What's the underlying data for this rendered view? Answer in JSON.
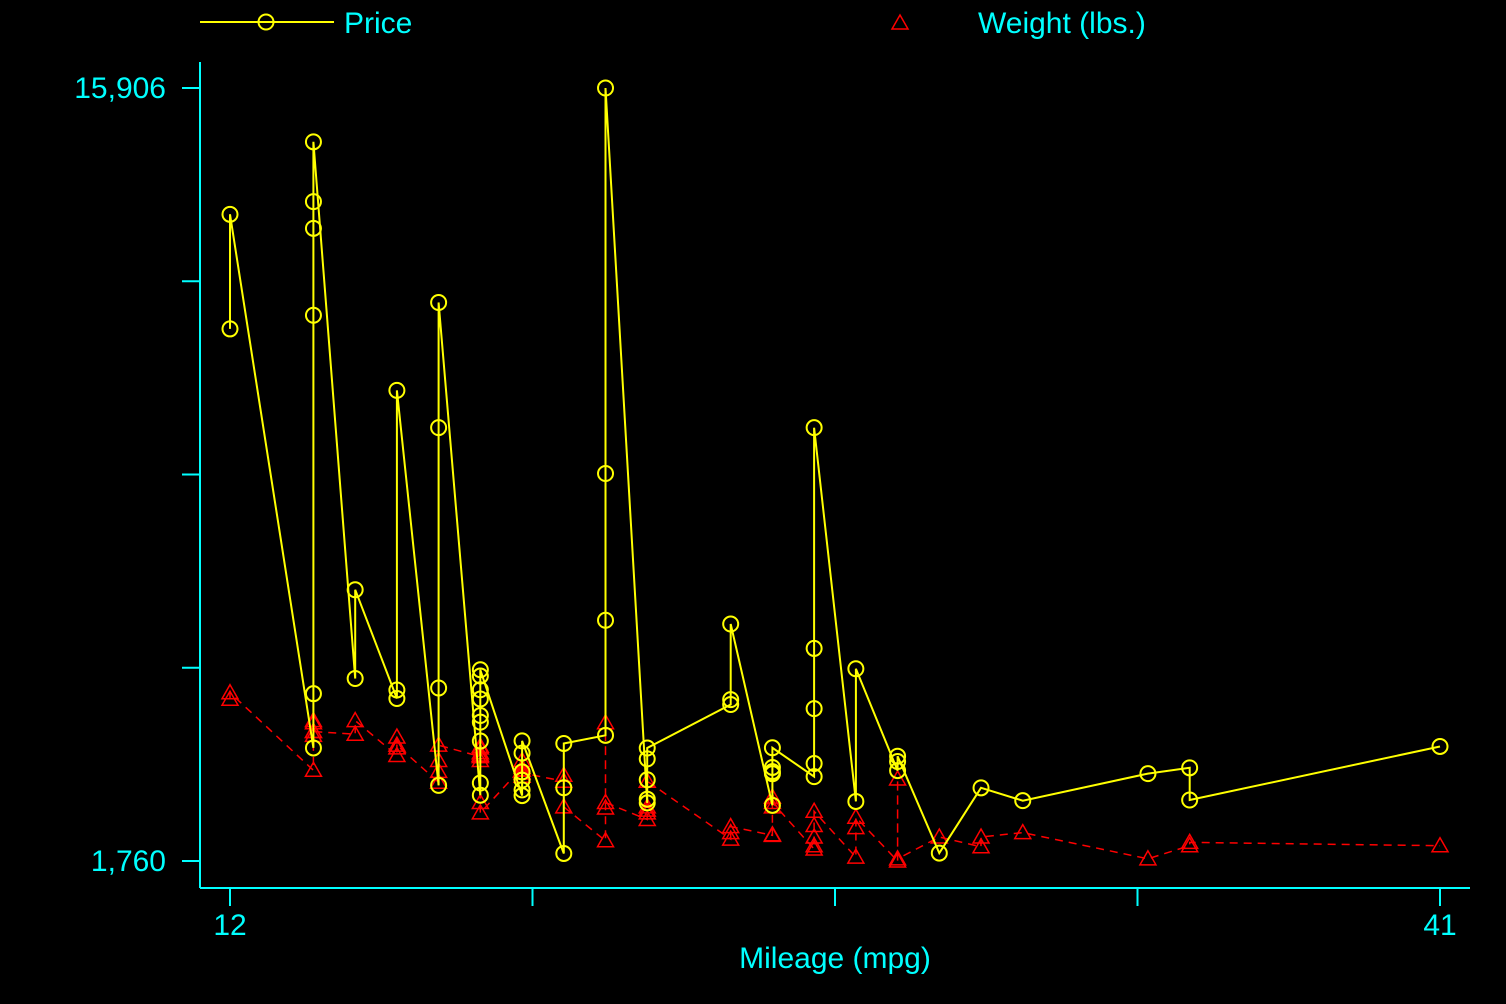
{
  "chart_data": {
    "type": "line",
    "title": "",
    "xlabel": "Mileage (mpg)",
    "ylabel": "",
    "xlim": [
      12,
      41
    ],
    "ylim": [
      1760,
      15906
    ],
    "x_ticks": [
      12,
      19.25,
      26.5,
      33.75,
      41
    ],
    "x_tick_labels": [
      "12",
      "",
      "",
      "",
      "41"
    ],
    "y_ticks": [
      1760,
      5296.5,
      8833,
      12369.5,
      15906
    ],
    "y_tick_labels": [
      "1,760",
      "",
      "",
      "",
      "15,906"
    ],
    "grid": false,
    "legend_position": "top",
    "colors": {
      "background": "#000000",
      "axis": "#00ffff",
      "text": "#00ffff",
      "price": "#ffff00",
      "weight": "#ff0000"
    },
    "series": [
      {
        "name": "Price",
        "style": "solid",
        "marker": "circle",
        "points": [
          [
            12,
            11497
          ],
          [
            12,
            13594
          ],
          [
            14,
            3829
          ],
          [
            14,
            4822
          ],
          [
            14,
            11747
          ],
          [
            14,
            13338
          ],
          [
            14,
            13827
          ],
          [
            14,
            14921
          ],
          [
            15,
            5100
          ],
          [
            15,
            6724
          ],
          [
            16,
            4734
          ],
          [
            16,
            4890
          ],
          [
            16,
            10372
          ],
          [
            17,
            3144
          ],
          [
            17,
            4926
          ],
          [
            17,
            9691
          ],
          [
            17,
            11981
          ],
          [
            18,
            2964
          ],
          [
            18,
            3187
          ],
          [
            18,
            3955
          ],
          [
            18,
            4302
          ],
          [
            18,
            4423
          ],
          [
            18,
            4724
          ],
          [
            18,
            4893
          ],
          [
            18,
            5145
          ],
          [
            18,
            5259
          ],
          [
            19,
            2957
          ],
          [
            19,
            3061
          ],
          [
            19,
            3240
          ],
          [
            19,
            3390
          ],
          [
            19,
            3735
          ],
          [
            19,
            3958
          ],
          [
            20,
            1898
          ],
          [
            20,
            3100
          ],
          [
            20,
            3911
          ],
          [
            21,
            4060
          ],
          [
            21,
            6165
          ],
          [
            21,
            8851
          ],
          [
            21,
            15906
          ],
          [
            22,
            2823
          ],
          [
            22,
            2891
          ],
          [
            22,
            3247
          ],
          [
            22,
            3628
          ],
          [
            22,
            3828
          ],
          [
            24,
            4624
          ],
          [
            24,
            4713
          ],
          [
            24,
            6097
          ],
          [
            25,
            2779
          ],
          [
            25,
            3395
          ],
          [
            25,
            3358
          ],
          [
            25,
            3472
          ],
          [
            25,
            3832
          ],
          [
            26,
            3304
          ],
          [
            26,
            3544
          ],
          [
            26,
            4548
          ],
          [
            26,
            5650
          ],
          [
            26,
            9690
          ],
          [
            27,
            2850
          ],
          [
            27,
            5278
          ],
          [
            28,
            3415
          ],
          [
            28,
            3580
          ],
          [
            28,
            3678
          ],
          [
            29,
            1905
          ],
          [
            30,
            3099
          ],
          [
            31,
            2864
          ],
          [
            34,
            3359
          ],
          [
            35,
            3465
          ],
          [
            35,
            2876
          ],
          [
            41,
            3856
          ]
        ]
      },
      {
        "name": "Weight (lbs.)",
        "style": "dashed",
        "marker": "triangle",
        "points": [
          [
            12,
            4720
          ],
          [
            12,
            4840
          ],
          [
            14,
            3420
          ],
          [
            14,
            4060
          ],
          [
            14,
            4130
          ],
          [
            14,
            4290
          ],
          [
            14,
            4330
          ],
          [
            14,
            4130
          ],
          [
            15,
            4080
          ],
          [
            15,
            4330
          ],
          [
            16,
            3690
          ],
          [
            16,
            3830
          ],
          [
            16,
            4030
          ],
          [
            16,
            3880
          ],
          [
            17,
            3200
          ],
          [
            17,
            3600
          ],
          [
            17,
            3400
          ],
          [
            17,
            3880
          ],
          [
            18,
            3670
          ],
          [
            18,
            3740
          ],
          [
            18,
            3700
          ],
          [
            18,
            3860
          ],
          [
            18,
            3690
          ],
          [
            18,
            3600
          ],
          [
            18,
            3830
          ],
          [
            18,
            2830
          ],
          [
            18,
            2640
          ],
          [
            19,
            3470
          ],
          [
            19,
            3420
          ],
          [
            19,
            3430
          ],
          [
            19,
            3600
          ],
          [
            19,
            3310
          ],
          [
            19,
            3370
          ],
          [
            20,
            3220
          ],
          [
            20,
            3330
          ],
          [
            20,
            2750
          ],
          [
            21,
            2130
          ],
          [
            21,
            2730
          ],
          [
            21,
            4290
          ],
          [
            21,
            2830
          ],
          [
            22,
            2520
          ],
          [
            22,
            2640
          ],
          [
            22,
            2690
          ],
          [
            22,
            2750
          ],
          [
            22,
            3220
          ],
          [
            24,
            2160
          ],
          [
            24,
            2280
          ],
          [
            24,
            2390
          ],
          [
            25,
            2230
          ],
          [
            25,
            2240
          ],
          [
            25,
            2750
          ],
          [
            25,
            2930
          ],
          [
            25,
            2830
          ],
          [
            26,
            1980
          ],
          [
            26,
            2040
          ],
          [
            26,
            2200
          ],
          [
            26,
            2410
          ],
          [
            26,
            2670
          ],
          [
            27,
            1830
          ],
          [
            27,
            2370
          ],
          [
            27,
            2560
          ],
          [
            28,
            1760
          ],
          [
            28,
            3260
          ],
          [
            28,
            1800
          ],
          [
            29,
            2200
          ],
          [
            30,
            2020
          ],
          [
            30,
            2200
          ],
          [
            31,
            2280
          ],
          [
            34,
            1800
          ],
          [
            35,
            2040
          ],
          [
            35,
            2100
          ],
          [
            41,
            2040
          ]
        ]
      }
    ]
  }
}
